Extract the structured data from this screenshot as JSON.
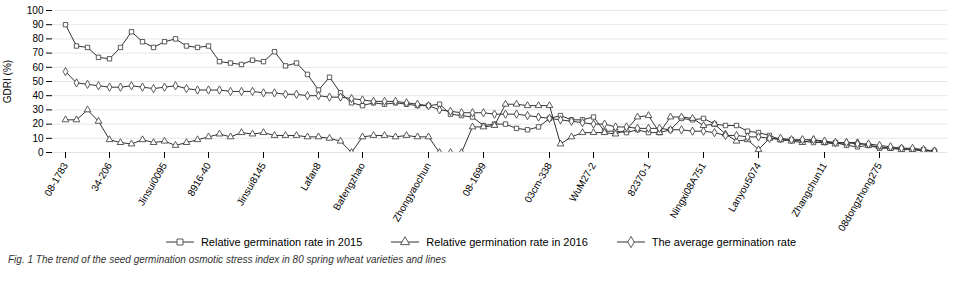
{
  "chart_data": {
    "type": "line",
    "ylabel": "GDRI (%)",
    "caption": "Fig. 1 The trend of the seed germination osmotic stress index in 80 spring wheat varieties and lines",
    "categories": [
      "08-1783",
      null,
      null,
      null,
      "34-206",
      null,
      null,
      null,
      null,
      "Jinsui0095",
      null,
      null,
      null,
      "8916-40",
      null,
      null,
      null,
      null,
      "Jinsui8145",
      null,
      null,
      null,
      null,
      "Lafan8",
      null,
      null,
      null,
      "Bafengzhao",
      null,
      null,
      null,
      null,
      null,
      "Zhongyaochun",
      null,
      null,
      null,
      null,
      "08-1699",
      null,
      null,
      null,
      null,
      null,
      "03cm-338",
      null,
      null,
      null,
      "WuM27-2",
      null,
      null,
      null,
      null,
      "82370-1",
      null,
      null,
      null,
      null,
      "Ningxi08A751",
      null,
      null,
      null,
      null,
      "Lanyou5074",
      null,
      null,
      null,
      null,
      null,
      "Zhangchun11",
      null,
      null,
      null,
      null,
      "08dongzhong275",
      null,
      null,
      null,
      null,
      null
    ],
    "series": [
      {
        "name": "Relative germination rate in 2015",
        "color": "#333333",
        "marker": "square",
        "values": [
          90,
          75,
          74,
          67,
          66,
          74,
          85,
          78,
          74,
          78,
          80,
          75,
          74,
          75,
          64,
          63,
          62,
          65,
          64,
          71,
          61,
          63,
          55,
          44,
          53,
          42,
          35,
          33,
          35,
          34,
          35,
          34,
          33,
          33,
          34,
          27,
          26,
          25,
          19,
          20,
          20,
          17,
          16,
          18,
          24,
          26,
          23,
          23,
          25,
          15,
          15,
          14,
          16,
          14,
          14,
          16,
          24,
          23,
          24,
          20,
          19,
          19,
          15,
          14,
          12,
          9,
          9,
          8,
          7,
          7,
          7,
          5,
          4,
          5,
          3,
          3,
          3,
          2,
          2,
          1
        ]
      },
      {
        "name": "Relative germination rate in 2016",
        "color": "#333333",
        "marker": "triangle",
        "values": [
          23,
          23,
          30,
          22,
          9,
          7,
          6,
          9,
          7,
          8,
          5,
          7,
          9,
          11,
          13,
          11,
          14,
          13,
          14,
          12,
          12,
          12,
          11,
          11,
          10,
          8,
          0,
          11,
          12,
          12,
          11,
          12,
          11,
          11,
          0,
          0,
          0,
          18,
          18,
          19,
          34,
          34,
          33,
          33,
          33,
          6,
          11,
          14,
          14,
          14,
          13,
          16,
          25,
          26,
          14,
          25,
          25,
          24,
          19,
          20,
          13,
          8,
          9,
          2,
          10,
          9,
          8,
          7,
          9,
          7,
          6,
          7,
          7,
          5,
          4,
          3,
          2,
          2,
          1,
          1
        ]
      },
      {
        "name": "The average germination rate",
        "color": "#333333",
        "marker": "diamond",
        "values": [
          57,
          49,
          48,
          47,
          46,
          46,
          47,
          46,
          45,
          46,
          47,
          45,
          44,
          44,
          44,
          43,
          43,
          43,
          42,
          42,
          41,
          41,
          40,
          40,
          39,
          39,
          38,
          37,
          36,
          36,
          36,
          35,
          34,
          33,
          30,
          29,
          28,
          28,
          28,
          27,
          27,
          27,
          26,
          25,
          24,
          23,
          22,
          21,
          20,
          20,
          18,
          18,
          17,
          17,
          17,
          16,
          16,
          15,
          15,
          14,
          12,
          12,
          11,
          11,
          10,
          10,
          9,
          9,
          9,
          8,
          7,
          7,
          6,
          6,
          5,
          4,
          3,
          3,
          2,
          1
        ]
      }
    ],
    "ylim": [
      0,
      100
    ],
    "yticks": [
      0,
      10,
      20,
      30,
      40,
      50,
      60,
      70,
      80,
      90,
      100
    ],
    "grid": "y",
    "legend": "bottom"
  }
}
